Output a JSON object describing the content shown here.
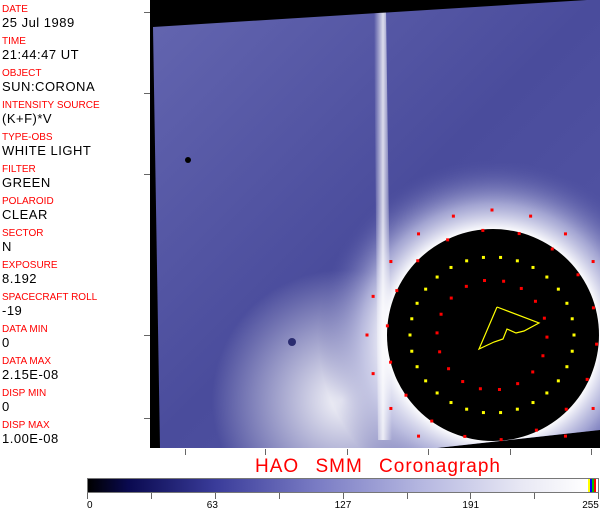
{
  "header_fields": [
    {
      "label": "DATE",
      "value": "25 Jul 1989"
    },
    {
      "label": "TIME",
      "value": "21:44:47 UT"
    },
    {
      "label": "OBJECT",
      "value": "SUN:CORONA"
    },
    {
      "label": "INTENSITY SOURCE",
      "value": "(K+F)*V"
    },
    {
      "label": "TYPE-OBS",
      "value": "WHITE LIGHT"
    },
    {
      "label": "FILTER",
      "value": "GREEN"
    },
    {
      "label": "POLAROID",
      "value": "CLEAR"
    },
    {
      "label": "SECTOR",
      "value": "N"
    },
    {
      "label": "EXPOSURE",
      "value": "8.192"
    },
    {
      "label": "SPACECRAFT ROLL",
      "value": "-19"
    },
    {
      "label": "DATA MIN",
      "value": "0"
    },
    {
      "label": "DATA MAX",
      "value": "2.15E-08"
    },
    {
      "label": "DISP MIN",
      "value": "0"
    },
    {
      "label": "DISP MAX",
      "value": "1.00E-08"
    }
  ],
  "title": "HAO  SMM  Coronagraph",
  "colorbar": {
    "tick_labels": [
      "0",
      "63",
      "127",
      "191",
      "255"
    ],
    "range": [
      0,
      255
    ],
    "colormap": [
      "#000000",
      "#0a0a50",
      "#3a3c9a",
      "#7a7cc4",
      "#b4b6e0",
      "#ffffff"
    ],
    "overlay_colors": [
      "#ffff00",
      "#0000ff",
      "#00c000",
      "#ff0000"
    ]
  },
  "colors": {
    "label": "#ff0000",
    "overlay_yellow": "#ffff00",
    "overlay_red": "#ff0000"
  }
}
